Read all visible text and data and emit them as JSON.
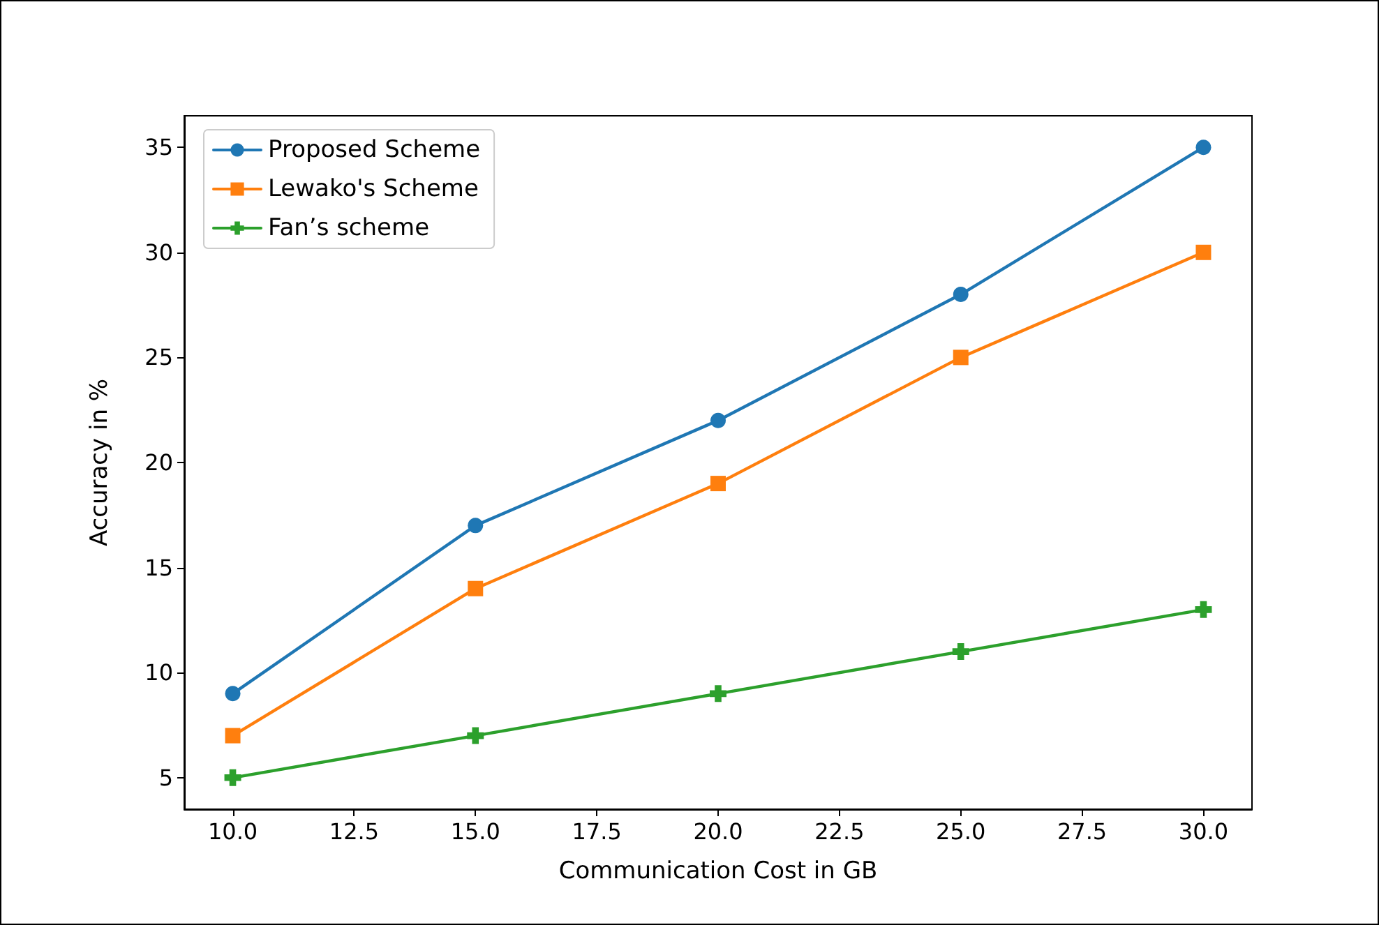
{
  "chart_data": {
    "type": "line",
    "xlabel": "Communication Cost in GB",
    "ylabel": "Accuracy in %",
    "x": [
      10,
      15,
      20,
      25,
      30
    ],
    "series": [
      {
        "name": "Proposed Scheme",
        "color": "#1f77b4",
        "marker": "circle",
        "values": [
          9,
          17,
          22,
          28,
          35
        ]
      },
      {
        "name": "Lewako's Scheme",
        "color": "#ff7f0e",
        "marker": "square",
        "values": [
          7,
          14,
          19,
          25,
          30
        ]
      },
      {
        "name": "Fan’s scheme",
        "color": "#2ca02c",
        "marker": "cross",
        "values": [
          5,
          7,
          9,
          11,
          13
        ]
      }
    ],
    "xlim": [
      9,
      31
    ],
    "ylim": [
      3.5,
      36.5
    ],
    "xticks": [
      {
        "value": 10,
        "label": "10.0"
      },
      {
        "value": 12.5,
        "label": "12.5"
      },
      {
        "value": 15,
        "label": "15.0"
      },
      {
        "value": 17.5,
        "label": "17.5"
      },
      {
        "value": 20,
        "label": "20.0"
      },
      {
        "value": 22.5,
        "label": "22.5"
      },
      {
        "value": 25,
        "label": "25.0"
      },
      {
        "value": 27.5,
        "label": "27.5"
      },
      {
        "value": 30,
        "label": "30.0"
      }
    ],
    "yticks": [
      5,
      10,
      15,
      20,
      25,
      30,
      35
    ],
    "grid": false,
    "legend": "top left",
    "line_style": "solid"
  }
}
